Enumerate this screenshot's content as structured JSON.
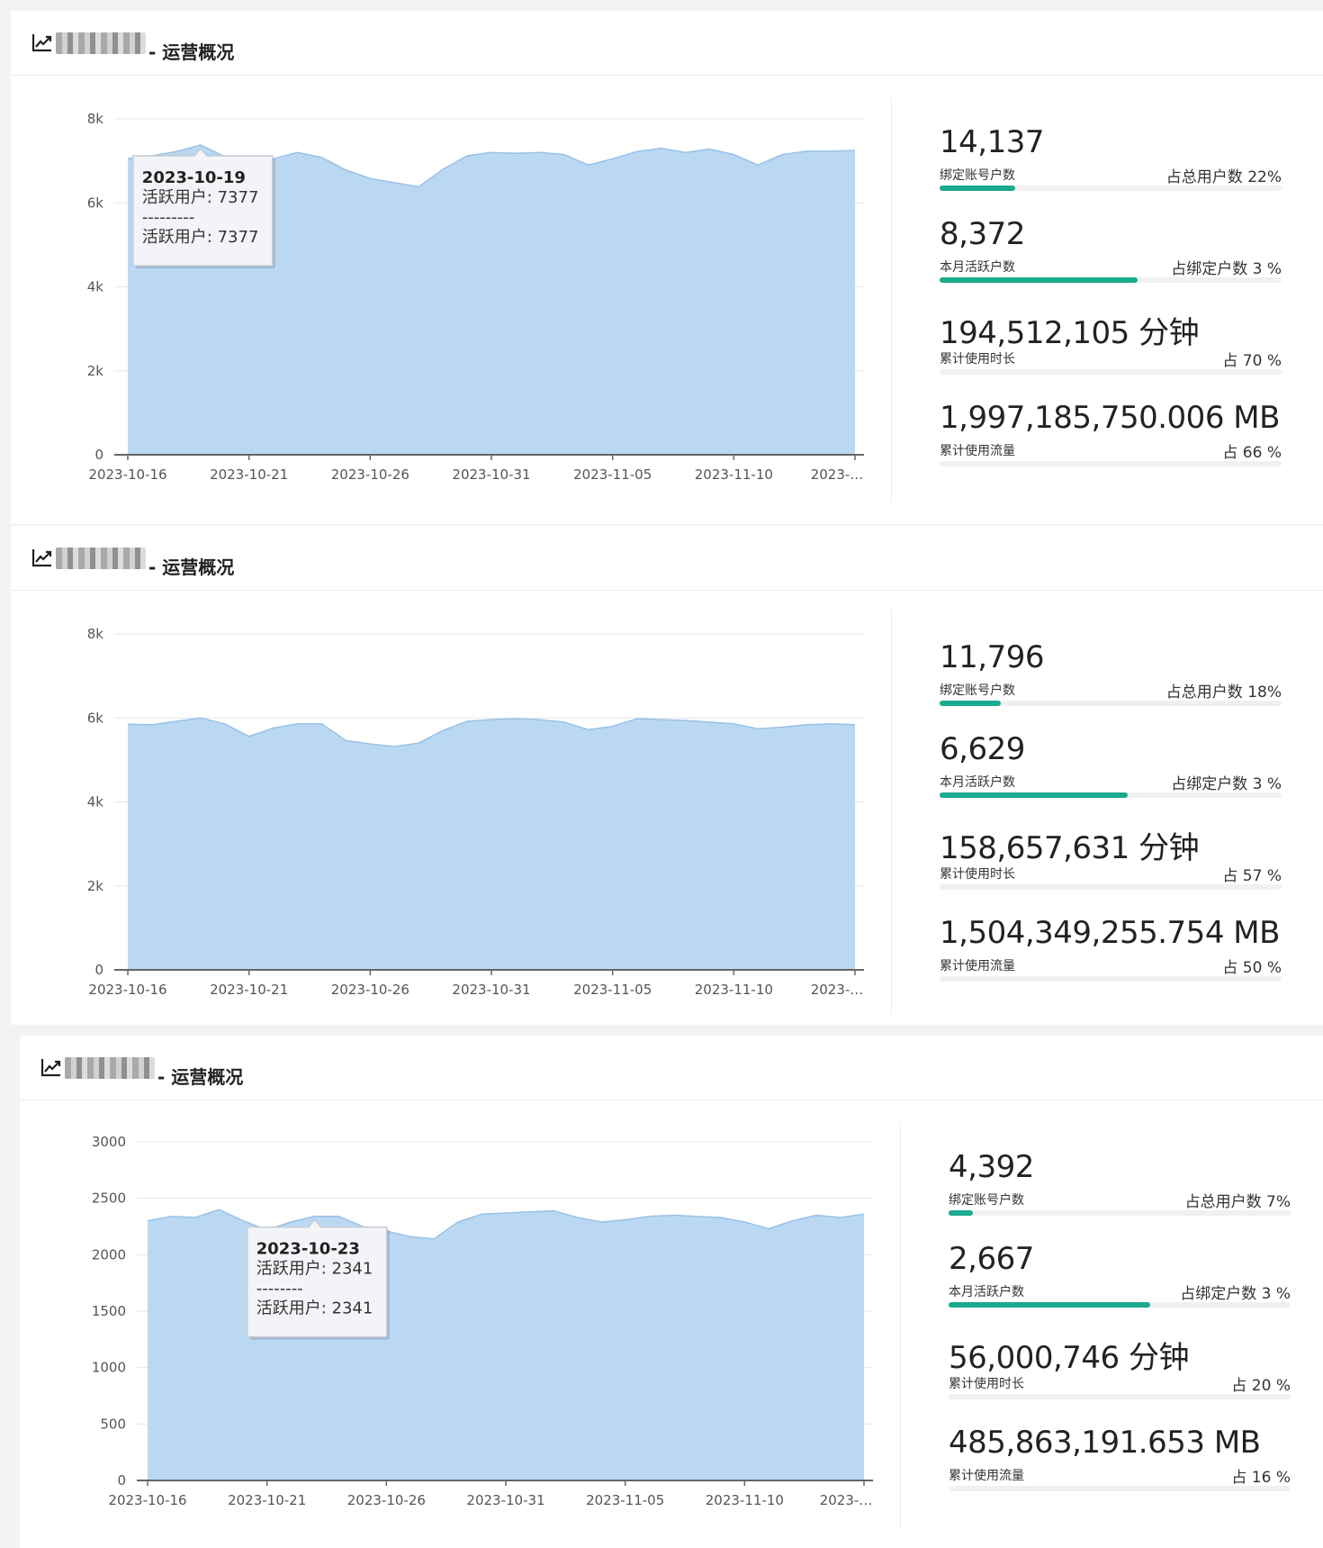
{
  "colors": {
    "area_fill": "#bbd8f2",
    "area_line": "#98c2e8",
    "accent_bar": "#1aaa8e",
    "axis": "#666666"
  },
  "panels": [
    {
      "title_suffix": "- 运营概况",
      "stats": [
        {
          "value": "14,137",
          "label": "绑定账号户数",
          "pct": "占总用户数 22%",
          "fill": 0.22
        },
        {
          "value": "8,372",
          "label": "本月活跃户数",
          "pct": "占绑定户数 3 %",
          "fill": 0.58
        },
        {
          "value": "194,512,105 分钟",
          "label": "累计使用时长",
          "pct": "占 70 %",
          "fill": 0
        },
        {
          "value": "1,997,185,750.006 MB",
          "label": "累计使用流量",
          "pct": "占 66 %",
          "fill": 0
        }
      ],
      "tooltip": {
        "date": "2023-10-19",
        "line1": "活跃用户: 7377",
        "separator": "---------",
        "line2": "活跃用户: 7377",
        "index": 3
      },
      "chart_data": {
        "type": "area",
        "x_tick_labels": [
          "2023-10-16",
          "2023-10-21",
          "2023-10-26",
          "2023-10-31",
          "2023-11-05",
          "2023-11-10",
          "2023-…"
        ],
        "y_tick_labels": [
          "0",
          "2k",
          "4k",
          "6k",
          "8k"
        ],
        "ylim": [
          0,
          8000
        ],
        "series": [
          {
            "values": [
              7050,
              7120,
              7220,
              7377,
              7100,
              6780,
              7050,
              7200,
              7080,
              6780,
              6580,
              6480,
              6380,
              6800,
              7120,
              7200,
              7180,
              7200,
              7150,
              6900,
              7050,
              7220,
              7300,
              7200,
              7280,
              7150,
              6900,
              7150,
              7230,
              7230,
              7250
            ]
          }
        ]
      }
    },
    {
      "title_suffix": "- 运营概况",
      "stats": [
        {
          "value": "11,796",
          "label": "绑定账号户数",
          "pct": "占总用户数 18%",
          "fill": 0.18
        },
        {
          "value": "6,629",
          "label": "本月活跃户数",
          "pct": "占绑定户数 3 %",
          "fill": 0.55
        },
        {
          "value": "158,657,631 分钟",
          "label": "累计使用时长",
          "pct": "占 57 %",
          "fill": 0
        },
        {
          "value": "1,504,349,255.754 MB",
          "label": "累计使用流量",
          "pct": "占 50 %",
          "fill": 0
        }
      ],
      "chart_data": {
        "type": "area",
        "x_tick_labels": [
          "2023-10-16",
          "2023-10-21",
          "2023-10-26",
          "2023-10-31",
          "2023-11-05",
          "2023-11-10",
          "2023-…"
        ],
        "y_tick_labels": [
          "0",
          "2k",
          "4k",
          "6k",
          "8k"
        ],
        "ylim": [
          0,
          8000
        ],
        "series": [
          {
            "values": [
              5850,
              5840,
              5920,
              6000,
              5860,
              5560,
              5760,
              5860,
              5860,
              5460,
              5380,
              5320,
              5400,
              5700,
              5920,
              5960,
              5980,
              5960,
              5900,
              5720,
              5800,
              5980,
              5960,
              5940,
              5900,
              5860,
              5740,
              5780,
              5840,
              5860,
              5840
            ]
          }
        ]
      }
    },
    {
      "title_suffix": "- 运营概况",
      "stats": [
        {
          "value": "4,392",
          "label": "绑定账号户数",
          "pct": "占总用户数 7%",
          "fill": 0.07
        },
        {
          "value": "2,667",
          "label": "本月活跃户数",
          "pct": "占绑定户数 3 %",
          "fill": 0.59
        },
        {
          "value": "56,000,746 分钟",
          "label": "累计使用时长",
          "pct": "占 20 %",
          "fill": 0
        },
        {
          "value": "485,863,191.653 MB",
          "label": "累计使用流量",
          "pct": "占 16 %",
          "fill": 0
        }
      ],
      "tooltip": {
        "date": "2023-10-23",
        "line1": "活跃用户: 2341",
        "separator": "--------",
        "line2": "活跃用户: 2341",
        "index": 7
      },
      "chart_data": {
        "type": "area",
        "x_tick_labels": [
          "2023-10-16",
          "2023-10-21",
          "2023-10-26",
          "2023-10-31",
          "2023-11-05",
          "2023-11-10",
          "2023-…"
        ],
        "y_tick_labels": [
          "0",
          "500",
          "1000",
          "1500",
          "2000",
          "2500",
          "3000"
        ],
        "ylim": [
          0,
          3000
        ],
        "series": [
          {
            "values": [
              2300,
              2340,
              2330,
              2400,
              2300,
              2220,
              2290,
              2341,
              2340,
              2250,
              2210,
              2160,
              2140,
              2290,
              2360,
              2370,
              2380,
              2390,
              2330,
              2290,
              2310,
              2340,
              2350,
              2340,
              2330,
              2290,
              2230,
              2300,
              2350,
              2330,
              2360
            ]
          }
        ]
      }
    }
  ]
}
